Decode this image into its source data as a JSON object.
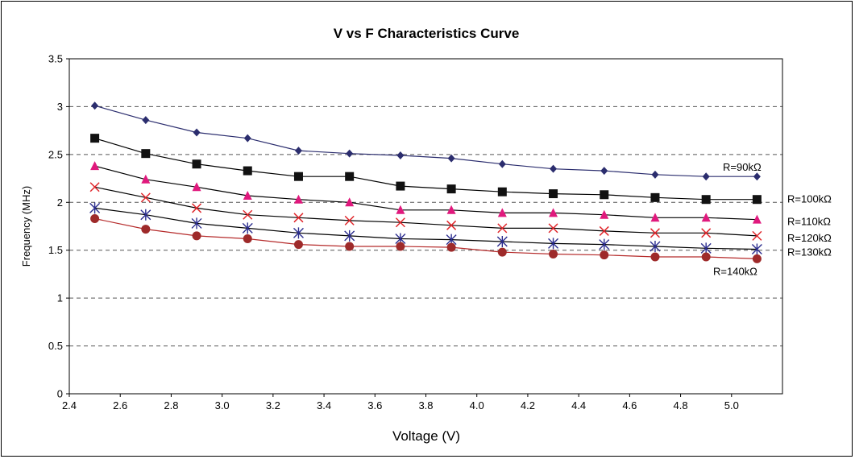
{
  "chart_data": {
    "type": "line",
    "title": "V vs F Characteristics Curve",
    "xlabel": "Voltage (V)",
    "ylabel": "Frequency (MHz)",
    "xlim": [
      2.4,
      5.2
    ],
    "ylim": [
      0,
      3.5
    ],
    "x_ticks": [
      "2.4",
      "2.6",
      "2.8",
      "3.0",
      "3.2",
      "3.4",
      "3.6",
      "3.8",
      "4.0",
      "4.2",
      "4.4",
      "4.6",
      "4.8",
      "5.0"
    ],
    "y_ticks": [
      "0",
      "0.5",
      "1",
      "1.5",
      "2",
      "2.5",
      "3",
      "3.5"
    ],
    "grid": "horizontal-dashed",
    "x": [
      2.5,
      2.7,
      2.9,
      3.1,
      3.3,
      3.5,
      3.7,
      3.9,
      4.1,
      4.3,
      4.5,
      4.7,
      4.9,
      5.1
    ],
    "series": [
      {
        "name": "R=90kΩ",
        "marker": "diamond",
        "line_color": "#2b2d6e",
        "marker_color": "#2b2d6e",
        "values": [
          3.01,
          2.86,
          2.73,
          2.67,
          2.54,
          2.51,
          2.49,
          2.46,
          2.4,
          2.35,
          2.33,
          2.29,
          2.27,
          2.27
        ]
      },
      {
        "name": "R=100kΩ",
        "marker": "square",
        "line_color": "#000000",
        "marker_color": "#111111",
        "values": [
          2.67,
          2.51,
          2.4,
          2.33,
          2.27,
          2.27,
          2.17,
          2.14,
          2.11,
          2.09,
          2.08,
          2.05,
          2.03,
          2.03
        ]
      },
      {
        "name": "R=110kΩ",
        "marker": "triangle",
        "line_color": "#000000",
        "marker_color": "#e0197d",
        "values": [
          2.38,
          2.24,
          2.16,
          2.07,
          2.03,
          2.0,
          1.92,
          1.92,
          1.89,
          1.89,
          1.87,
          1.84,
          1.84,
          1.82
        ]
      },
      {
        "name": "R=120kΩ",
        "marker": "x",
        "line_color": "#000000",
        "marker_color": "#e0262b",
        "values": [
          2.16,
          2.05,
          1.94,
          1.87,
          1.84,
          1.81,
          1.79,
          1.76,
          1.73,
          1.73,
          1.7,
          1.68,
          1.68,
          1.65
        ]
      },
      {
        "name": "R=130kΩ",
        "marker": "asterisk",
        "line_color": "#000000",
        "marker_color": "#2b2d8e",
        "values": [
          1.94,
          1.87,
          1.78,
          1.73,
          1.68,
          1.65,
          1.62,
          1.61,
          1.59,
          1.57,
          1.56,
          1.54,
          1.52,
          1.51
        ]
      },
      {
        "name": "R=140kΩ",
        "marker": "circle",
        "line_color": "#b52a2a",
        "marker_color": "#9e2a2a",
        "values": [
          1.83,
          1.72,
          1.65,
          1.62,
          1.56,
          1.54,
          1.54,
          1.53,
          1.48,
          1.46,
          1.45,
          1.43,
          1.43,
          1.41
        ]
      }
    ]
  }
}
